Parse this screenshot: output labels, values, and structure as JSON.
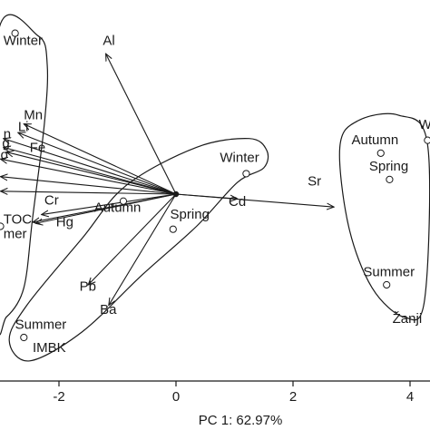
{
  "chart_data": {
    "type": "scatter",
    "subtype": "pca-biplot",
    "xlabel": "PC 1: 62.97%",
    "xlim": [
      -3.0,
      4.25
    ],
    "ylim": [
      -3.5,
      2.9
    ],
    "x_ticks": [
      "-2",
      "0",
      "2",
      "4"
    ],
    "x_tick_values": [
      -2,
      0,
      2,
      4
    ],
    "grid": false,
    "legend": "none",
    "loadings_origin": [
      0,
      0
    ],
    "loadings": [
      {
        "label": "Al",
        "x": -1.2,
        "y": 2.4,
        "lx": -1.25,
        "ly": 2.55
      },
      {
        "label": "Mn",
        "x": -2.6,
        "y": 1.2,
        "lx": -2.6,
        "ly": 1.28
      },
      {
        "label": "Li",
        "x": -2.7,
        "y": 1.05,
        "lx": -2.7,
        "ly": 1.08
      },
      {
        "label": "n",
        "x": -2.95,
        "y": 0.95,
        "lx": -2.95,
        "ly": 0.95
      },
      {
        "label": "Fe",
        "x": -2.9,
        "y": 0.72,
        "lx": -2.5,
        "ly": 0.72
      },
      {
        "label": "g",
        "x": -2.95,
        "y": 0.8,
        "lx": -2.97,
        "ly": 0.8
      },
      {
        "label": "o",
        "x": -3.0,
        "y": 0.6,
        "lx": -3.0,
        "ly": 0.6
      },
      {
        "label": "",
        "x": -3.0,
        "y": 0.3,
        "lx": 0,
        "ly": 0
      },
      {
        "label": "",
        "x": -3.0,
        "y": 0.05,
        "lx": 0,
        "ly": 0
      },
      {
        "label": "Cr",
        "x": -2.3,
        "y": -0.35,
        "lx": -2.25,
        "ly": -0.18
      },
      {
        "label": "TOC",
        "x": -2.45,
        "y": -0.48,
        "lx": -2.95,
        "ly": -0.5
      },
      {
        "label": "Hg",
        "x": -2.4,
        "y": -0.5,
        "lx": -2.05,
        "ly": -0.55
      },
      {
        "label": "Pb",
        "x": -1.5,
        "y": -1.55,
        "lx": -1.65,
        "ly": -1.65
      },
      {
        "label": "Ba",
        "x": -1.15,
        "y": -1.9,
        "lx": -1.3,
        "ly": -2.05
      },
      {
        "label": "Cd",
        "x": 1.05,
        "y": -0.08,
        "lx": 0.9,
        "ly": -0.2
      },
      {
        "label": "Sr",
        "x": 2.7,
        "y": -0.22,
        "lx": 2.25,
        "ly": 0.15
      }
    ],
    "scores": [
      {
        "label": "Winter",
        "x": -2.75,
        "y": 2.75,
        "lx": -2.95,
        "ly": 2.55
      },
      {
        "label": "Autumn",
        "x": -0.9,
        "y": -0.12,
        "lx": -1.4,
        "ly": -0.3
      },
      {
        "label": "Winter",
        "x": 1.2,
        "y": 0.35,
        "lx": 0.75,
        "ly": 0.55
      },
      {
        "label": "Spring",
        "x": -0.05,
        "y": -0.6,
        "lx": -0.1,
        "ly": -0.42
      },
      {
        "label": "Summer",
        "x": -2.6,
        "y": -2.45,
        "lx": -2.75,
        "ly": -2.3
      },
      {
        "label": "Autumn",
        "x": 3.5,
        "y": 0.7,
        "lx": 3.0,
        "ly": 0.85
      },
      {
        "label": "Winter",
        "x": 4.3,
        "y": 0.92,
        "lx": 4.15,
        "ly": 1.12
      },
      {
        "label": "Spring",
        "x": 3.65,
        "y": 0.25,
        "lx": 3.3,
        "ly": 0.4
      },
      {
        "label": "Summer",
        "x": 3.6,
        "y": -1.55,
        "lx": 3.2,
        "ly": -1.4
      },
      {
        "label": "",
        "x": -3.0,
        "y": -0.55,
        "lx": 0,
        "ly": 0
      }
    ],
    "extra_labels": [
      {
        "label": "IMBK",
        "x": -2.45,
        "y": -2.7
      },
      {
        "label": "Žanji",
        "x": 3.7,
        "y": -2.2
      },
      {
        "label": "mer",
        "x": -2.95,
        "y": -0.75
      }
    ],
    "groups": [
      {
        "name": "left-cluster",
        "points": [
          [
            -2.35,
            2.7
          ],
          [
            -2.2,
            2.2
          ],
          [
            -2.25,
            1.2
          ],
          [
            -2.45,
            -0.4
          ],
          [
            -2.6,
            -1.6
          ],
          [
            -2.9,
            -2.1
          ],
          [
            -3.05,
            -2.0
          ],
          [
            -3.05,
            2.7
          ]
        ]
      },
      {
        "name": "center-cluster",
        "points": [
          [
            1.55,
            0.75
          ],
          [
            1.5,
            0.45
          ],
          [
            1.05,
            0.2
          ],
          [
            0.35,
            -0.55
          ],
          [
            -0.6,
            -1.4
          ],
          [
            -1.6,
            -2.35
          ],
          [
            -2.5,
            -2.85
          ],
          [
            -2.85,
            -2.5
          ],
          [
            -2.55,
            -1.9
          ],
          [
            -1.6,
            -0.75
          ],
          [
            -0.85,
            0.15
          ],
          [
            0.35,
            0.8
          ],
          [
            1.25,
            0.95
          ]
        ]
      },
      {
        "name": "right-cluster",
        "points": [
          [
            3.1,
            1.25
          ],
          [
            3.8,
            1.35
          ],
          [
            4.3,
            0.85
          ],
          [
            4.25,
            -1.8
          ],
          [
            3.9,
            -2.1
          ],
          [
            3.35,
            -1.6
          ],
          [
            2.95,
            -0.55
          ],
          [
            2.8,
            0.8
          ]
        ]
      }
    ]
  }
}
